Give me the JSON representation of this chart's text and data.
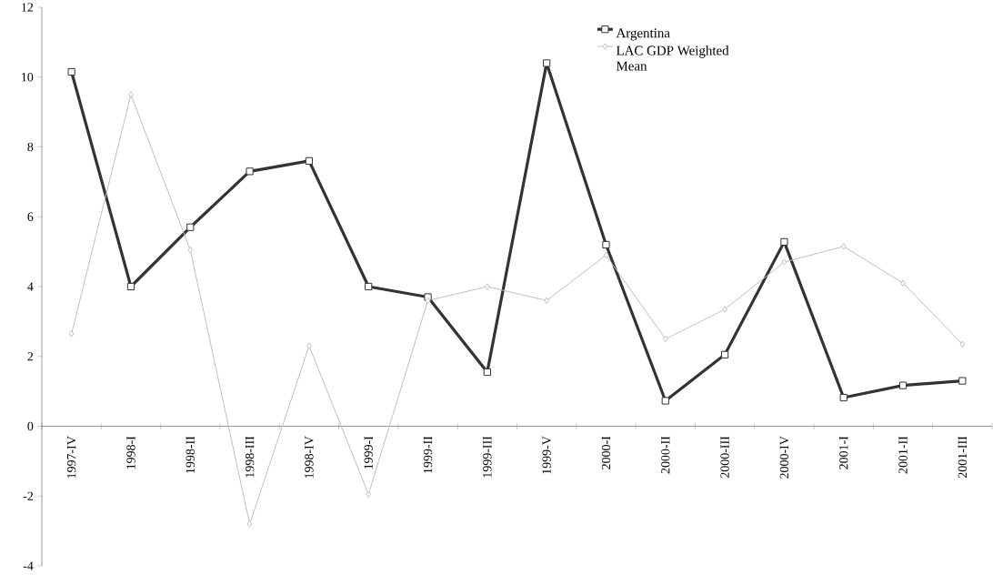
{
  "chart_data": {
    "type": "line",
    "categories": [
      "1997-IV",
      "1998-I",
      "1998-II",
      "1998-III",
      "1998-IV",
      "1999-I",
      "1999-II",
      "1999-III",
      "1999-V",
      "2000-I",
      "2000-II",
      "2000-III",
      "2000-IV",
      "2001-I",
      "2001-II",
      "2001-III"
    ],
    "series": [
      {
        "name": "Argentina",
        "color": "#333333",
        "marker": "square",
        "values": [
          10.15,
          4.0,
          5.7,
          7.3,
          7.6,
          4.0,
          3.7,
          1.55,
          10.4,
          5.2,
          0.73,
          2.05,
          5.28,
          0.82,
          1.17,
          1.3
        ]
      },
      {
        "name": "LAC GDP Weighted Mean",
        "color": "#bfbfbf",
        "marker": "diamond",
        "values": [
          2.65,
          9.5,
          5.05,
          -2.8,
          2.3,
          -1.95,
          3.6,
          4.0,
          3.6,
          4.9,
          2.5,
          3.35,
          4.7,
          5.15,
          4.1,
          2.35
        ]
      }
    ],
    "ylim": [
      -4,
      12
    ],
    "yticks": [
      -4,
      -2,
      0,
      2,
      4,
      6,
      8,
      10,
      12
    ],
    "legend": "top right"
  }
}
